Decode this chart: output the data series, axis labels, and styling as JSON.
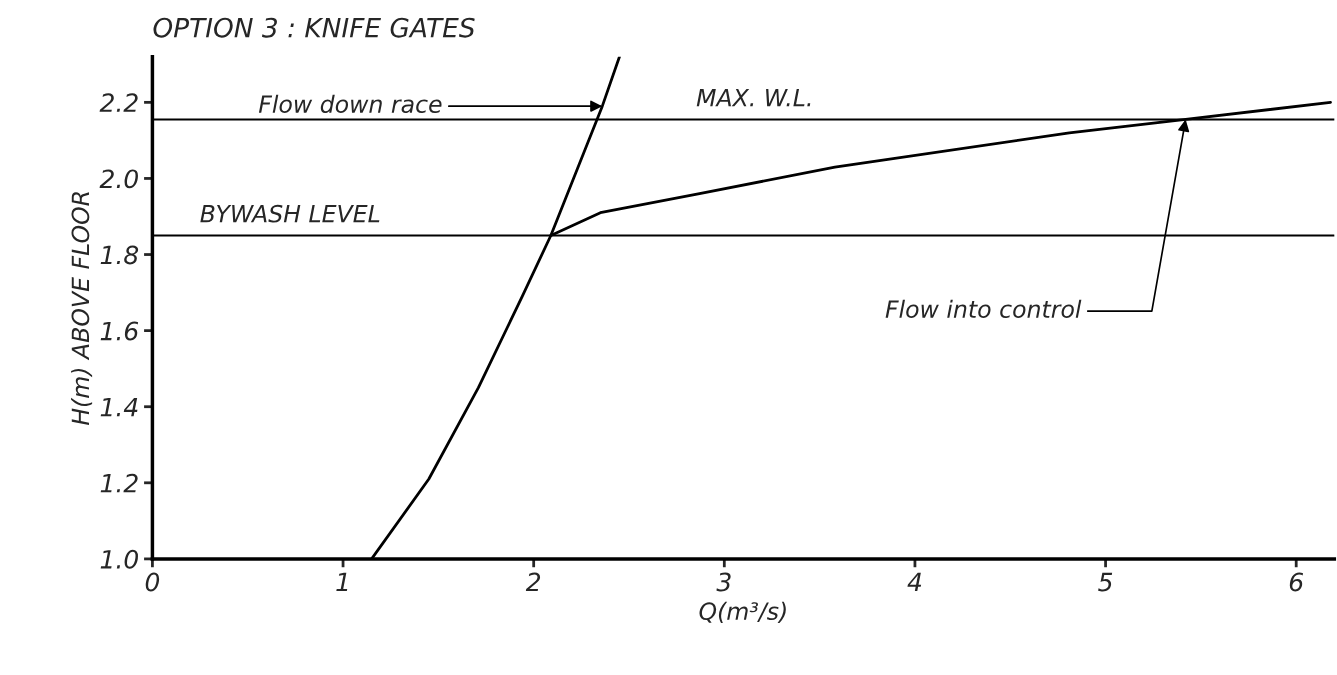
{
  "chart_data": {
    "type": "line",
    "title": "OPTION 3 : KNIFE GATES",
    "xlabel": "Q(m³/s)",
    "ylabel": "H(m) ABOVE FLOOR",
    "series": [
      {
        "color": "#000000",
        "x": [
          1.15,
          1.45,
          1.71,
          1.94,
          2.09,
          2.36,
          2.45
        ],
        "values": [
          1.0,
          1.21,
          1.45,
          1.69,
          1.85,
          2.19,
          2.32
        ]
      },
      {
        "color": "#000000",
        "x": [
          2.09,
          2.35,
          2.87,
          3.58,
          4.81,
          5.42,
          6.18
        ],
        "values": [
          1.85,
          1.91,
          1.96,
          2.03,
          2.12,
          2.155,
          2.2
        ]
      }
    ],
    "xlim": [
      0,
      6.2
    ],
    "ylim": [
      1.0,
      2.32
    ],
    "xticks": [
      0,
      1,
      2,
      3,
      4,
      5,
      6
    ],
    "yticks": [
      {
        "value": 1.0,
        "label": "1.0"
      },
      1.2,
      1.4,
      1.6,
      1.8,
      {
        "value": 2.0,
        "label": "2.0"
      },
      2.2
    ],
    "ref_lines": [
      {
        "axis": "y",
        "value": 1.85,
        "label": "BYWASH LEVEL",
        "color": "#000000"
      },
      {
        "axis": "y",
        "value": 2.155,
        "label": "MAX. W.L.",
        "color": "#000000"
      }
    ],
    "annotations": [
      {
        "text": "Flow down race",
        "x": 2.36,
        "y": 2.19
      },
      {
        "text": "Flow into control",
        "x": 5.42,
        "y": 2.155
      }
    ],
    "grid": false,
    "legend": false,
    "marker": "none",
    "line_style": "solid"
  }
}
